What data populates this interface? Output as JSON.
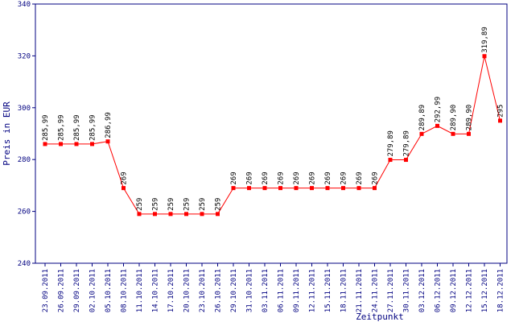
{
  "chart_data": {
    "type": "line",
    "title": "",
    "xlabel": "Zeitpunkt",
    "ylabel": "Preis in EUR",
    "ylim": [
      240,
      340
    ],
    "yticks": [
      240,
      260,
      280,
      300,
      320,
      340
    ],
    "grid": false,
    "legend": "none",
    "colors": {
      "line": "#ff0000",
      "marker": "#ff0000",
      "axis": "#000080",
      "text": "#000080",
      "labels": "#000000"
    },
    "categories": [
      "23.09.2011",
      "26.09.2011",
      "29.09.2011",
      "02.10.2011",
      "05.10.2011",
      "08.10.2011",
      "11.10.2011",
      "14.10.2011",
      "17.10.2011",
      "20.10.2011",
      "23.10.2011",
      "26.10.2011",
      "29.10.2011",
      "31.10.2011",
      "03.11.2011",
      "06.11.2011",
      "09.11.2011",
      "12.11.2011",
      "15.11.2011",
      "18.11.2011",
      "21.11.2011",
      "24.11.2011",
      "27.11.2011",
      "30.11.2011",
      "03.12.2011",
      "06.12.2011",
      "09.12.2011",
      "12.12.2011",
      "15.12.2011",
      "18.12.2011"
    ],
    "values": [
      285.99,
      285.99,
      285.99,
      285.99,
      286.99,
      269,
      259,
      259,
      259,
      259,
      259,
      259,
      269,
      269,
      269,
      269,
      269,
      269,
      269,
      269,
      269,
      269,
      279.89,
      279.89,
      289.89,
      292.99,
      289.9,
      289.9,
      319.89,
      295
    ],
    "data_labels": [
      "285,99",
      "285,99",
      "285,99",
      "285,99",
      "286,99",
      "269",
      "259",
      "259",
      "259",
      "259",
      "259",
      "259",
      "269",
      "269",
      "269",
      "269",
      "269",
      "269",
      "269",
      "269",
      "269",
      "269",
      "279,89",
      "279,89",
      "289,89",
      "292,99",
      "289,90",
      "289,90",
      "319,89",
      "295"
    ]
  }
}
